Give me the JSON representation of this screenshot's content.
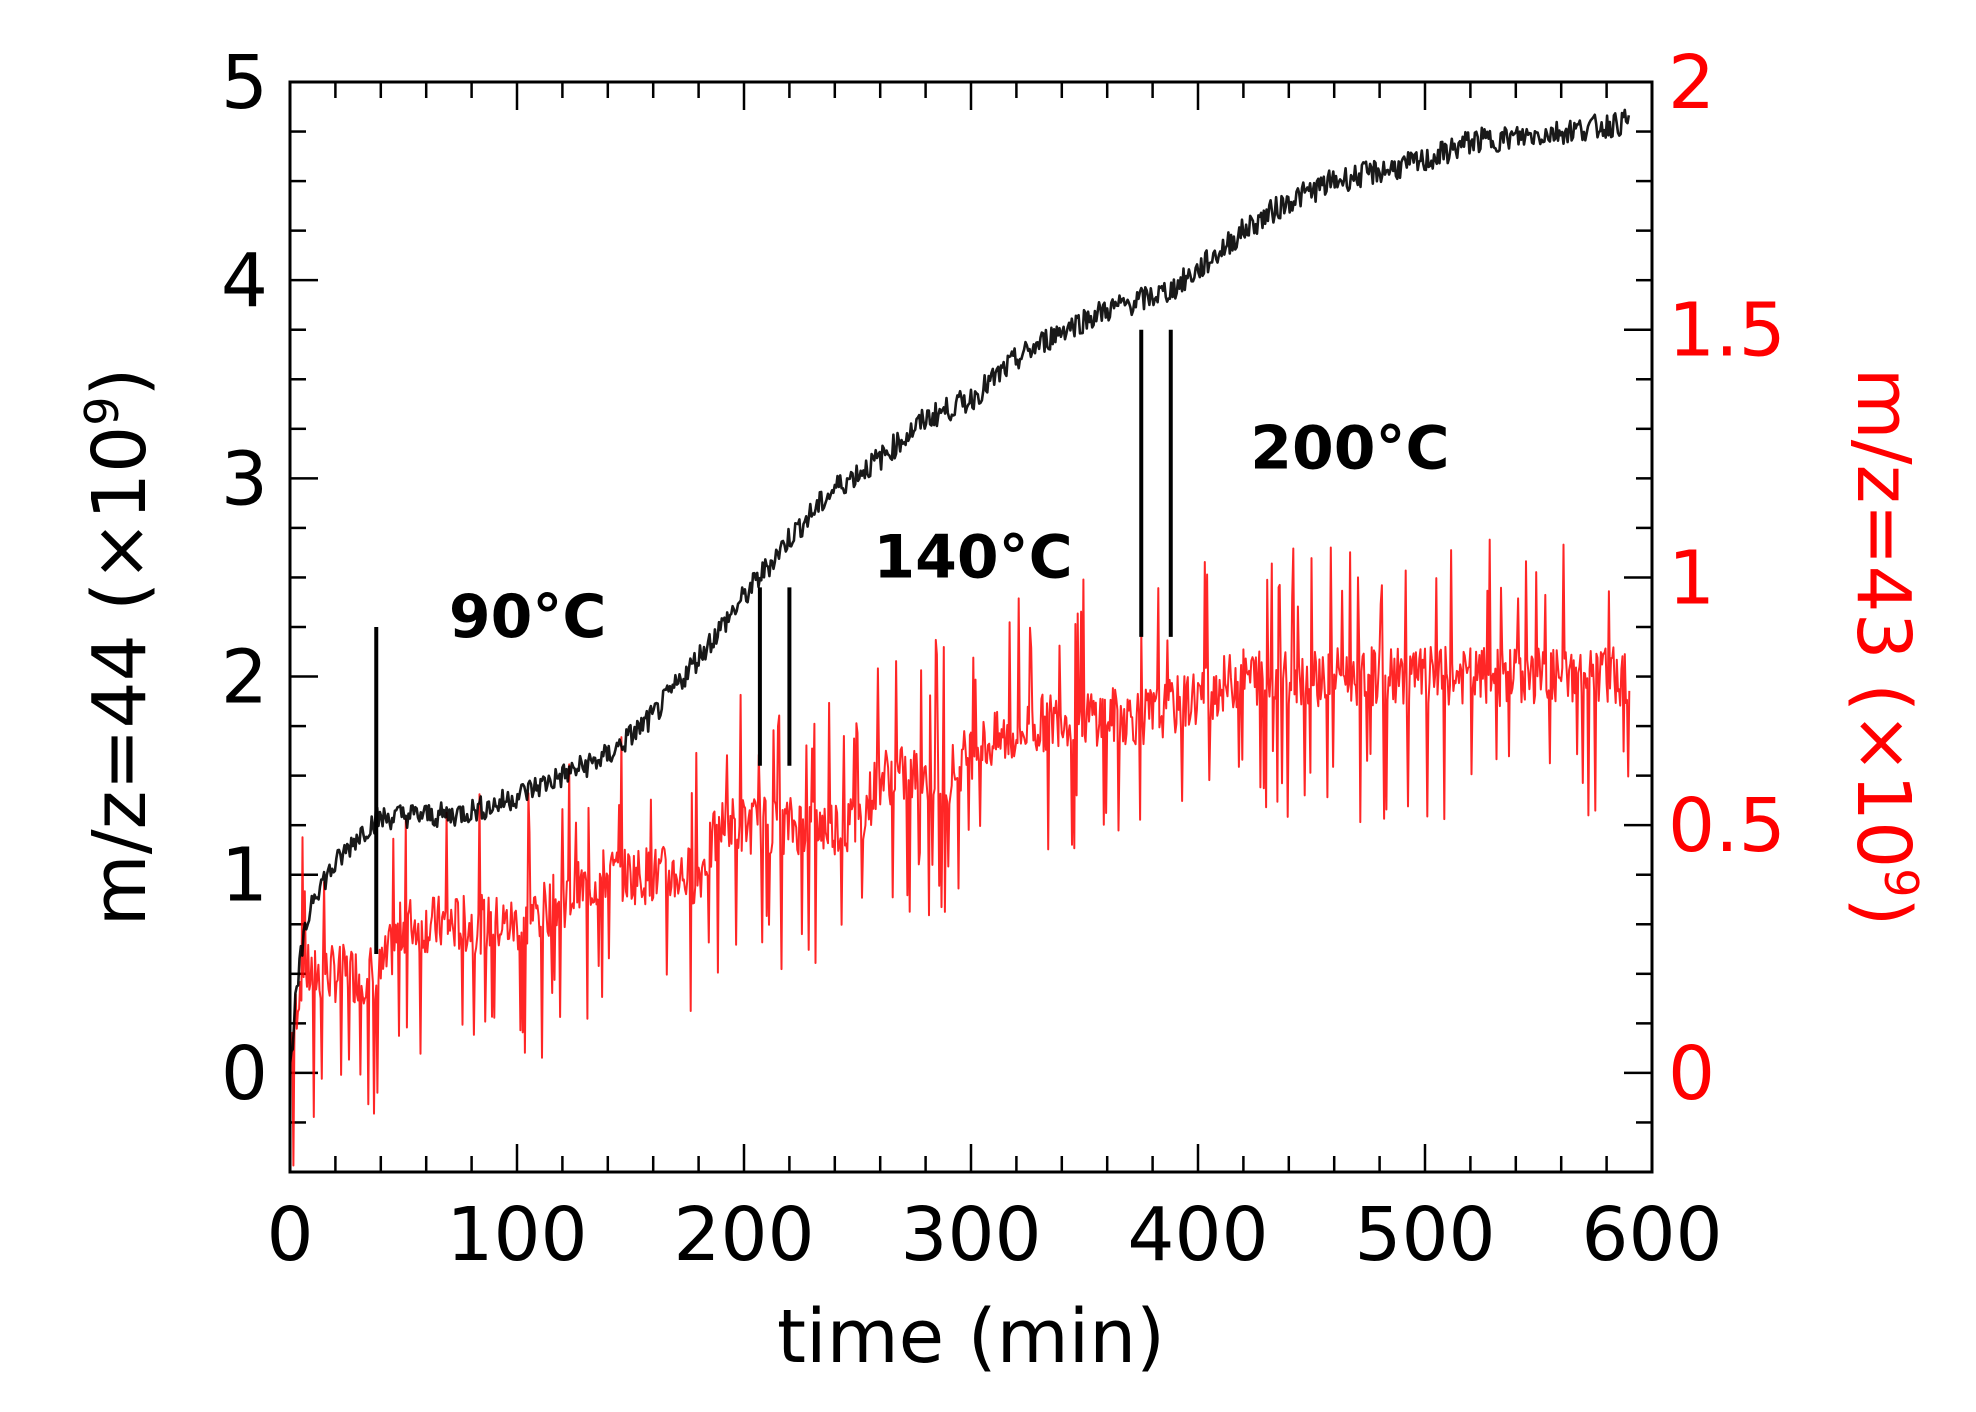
{
  "chart_data": {
    "type": "line",
    "xlabel": "time (min)",
    "ylabel_left": "m/z=44 (×10",
    "ylabel_left_exp": "9",
    "ylabel_right": "m/z=43 (×10",
    "ylabel_right_exp": "9",
    "x_range": [
      0,
      600
    ],
    "y_left_range": [
      -0.5,
      5.0
    ],
    "y_right_range": [
      -0.2,
      2.0
    ],
    "x_ticks": [
      "0",
      "100",
      "200",
      "300",
      "400",
      "500",
      "600"
    ],
    "y_left_ticks": [
      "0",
      "1",
      "2",
      "3",
      "4",
      "5"
    ],
    "y_right_ticks": [
      "0",
      "0.5",
      "1",
      "1.5",
      "2"
    ],
    "colors": {
      "left_axis": "#000000",
      "right_axis": "#ff0000",
      "series_mz44": "#000000",
      "series_mz43": "#ff0000"
    },
    "series": [
      {
        "axis": "left",
        "points": [
          [
            0,
            0
          ],
          [
            2,
            0.3
          ],
          [
            5,
            0.6
          ],
          [
            10,
            0.9
          ],
          [
            20,
            1.05
          ],
          [
            30,
            1.2
          ],
          [
            38,
            1.28
          ],
          [
            50,
            1.3
          ],
          [
            70,
            1.3
          ],
          [
            90,
            1.35
          ],
          [
            100,
            1.4
          ],
          [
            120,
            1.5
          ],
          [
            140,
            1.6
          ],
          [
            160,
            1.8
          ],
          [
            180,
            2.1
          ],
          [
            200,
            2.4
          ],
          [
            210,
            2.55
          ],
          [
            220,
            2.7
          ],
          [
            240,
            2.95
          ],
          [
            260,
            3.1
          ],
          [
            280,
            3.3
          ],
          [
            300,
            3.4
          ],
          [
            320,
            3.6
          ],
          [
            340,
            3.75
          ],
          [
            360,
            3.85
          ],
          [
            375,
            3.9
          ],
          [
            388,
            3.95
          ],
          [
            400,
            4.05
          ],
          [
            420,
            4.25
          ],
          [
            440,
            4.4
          ],
          [
            460,
            4.5
          ],
          [
            480,
            4.55
          ],
          [
            500,
            4.6
          ],
          [
            520,
            4.7
          ],
          [
            540,
            4.72
          ],
          [
            560,
            4.75
          ],
          [
            580,
            4.78
          ],
          [
            590,
            4.8
          ]
        ],
        "noise": 0.08
      },
      {
        "axis": "right",
        "points": [
          [
            0,
            0.05
          ],
          [
            5,
            0.2
          ],
          [
            10,
            0.2
          ],
          [
            40,
            0.2
          ],
          [
            50,
            0.3
          ],
          [
            100,
            0.3
          ],
          [
            140,
            0.4
          ],
          [
            180,
            0.4
          ],
          [
            190,
            0.5
          ],
          [
            250,
            0.5
          ],
          [
            260,
            0.6
          ],
          [
            290,
            0.6
          ],
          [
            300,
            0.65
          ],
          [
            340,
            0.72
          ],
          [
            380,
            0.72
          ],
          [
            420,
            0.8
          ],
          [
            500,
            0.8
          ],
          [
            590,
            0.8
          ]
        ],
        "noise": 0.1
      }
    ],
    "annotations": [
      {
        "label": "90°C",
        "x": 70,
        "y_right": 0.88
      },
      {
        "label": "140°C",
        "x": 257,
        "y_right": 1.0
      },
      {
        "label": "200°C",
        "x": 423,
        "y_right": 1.22
      }
    ],
    "markers": [
      {
        "x": 38,
        "y_left_from": 0.6,
        "y_left_to": 2.25
      },
      {
        "x": 207,
        "y_left_from": 1.55,
        "y_left_to": 2.45
      },
      {
        "x": 220,
        "y_left_from": 1.55,
        "y_left_to": 2.45
      },
      {
        "x": 375,
        "y_left_from": 2.2,
        "y_left_to": 3.75
      },
      {
        "x": 388,
        "y_left_from": 2.2,
        "y_left_to": 3.75
      }
    ]
  }
}
